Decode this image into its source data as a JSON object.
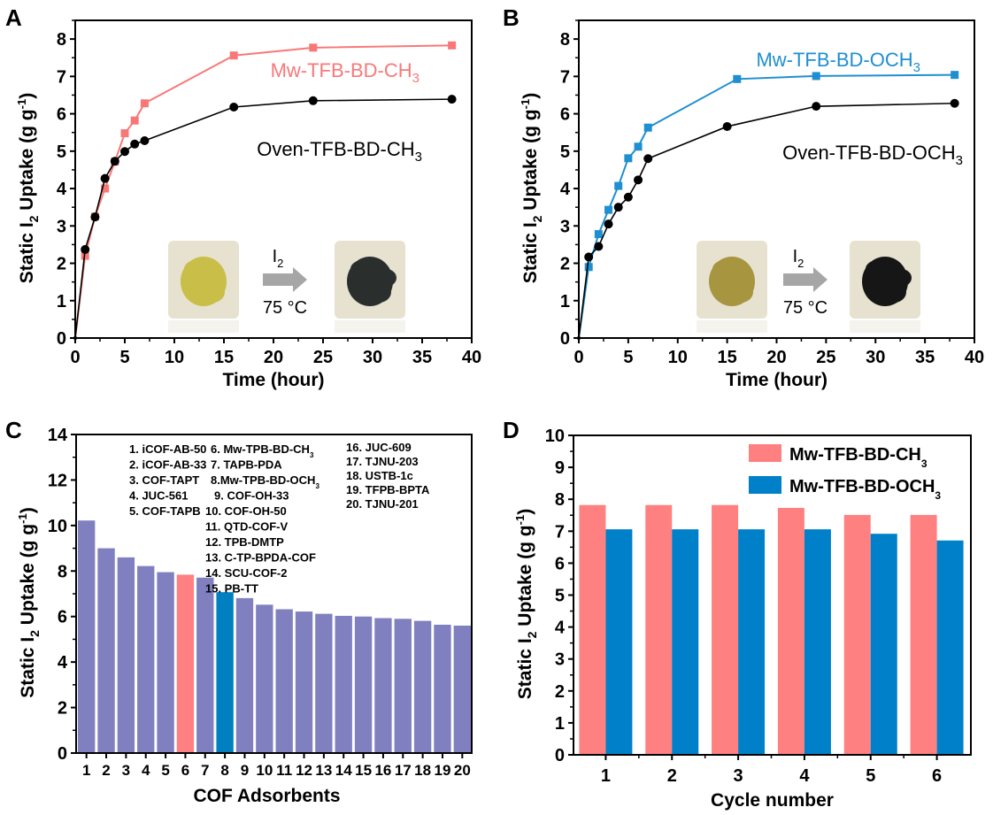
{
  "figure": {
    "panels": [
      "A",
      "B",
      "C",
      "D"
    ]
  },
  "chart_data": [
    {
      "panel": "A",
      "type": "line",
      "xlabel": "Time (hour)",
      "ylabel_main": "Static I",
      "ylabel_sub": "2",
      "ylabel_rest": " Uptake (g g",
      "ylabel_sup": "-1",
      "ylabel_end": ")",
      "xlim": [
        0,
        40
      ],
      "ylim": [
        0,
        8.5
      ],
      "xticks": [
        0,
        5,
        10,
        15,
        20,
        25,
        30,
        35,
        40
      ],
      "yticks": [
        0,
        1,
        2,
        3,
        4,
        5,
        6,
        7,
        8
      ],
      "series": [
        {
          "name": "Mw-TFB-BD-CH3",
          "label_main": "Mw-TFB-BD-CH",
          "label_sub": "3",
          "color": "#F87878",
          "marker": "square",
          "x": [
            0,
            1,
            2,
            3,
            4,
            5,
            6,
            7,
            16,
            24,
            38
          ],
          "y": [
            0,
            2.2,
            3.25,
            4.0,
            4.72,
            5.48,
            5.82,
            6.28,
            7.56,
            7.77,
            7.83
          ]
        },
        {
          "name": "Oven-TFB-BD-CH3",
          "label_main": "Oven-TFB-BD-CH",
          "label_sub": "3",
          "color": "#000000",
          "marker": "circle",
          "x": [
            0,
            1,
            2,
            3,
            4,
            5,
            6,
            7,
            16,
            24,
            38
          ],
          "y": [
            0,
            2.37,
            3.24,
            4.27,
            4.73,
            4.99,
            5.19,
            5.28,
            6.18,
            6.35,
            6.39
          ]
        }
      ],
      "inset": {
        "reagent_main": "I",
        "reagent_sub": "2",
        "condition": "75 °C",
        "before_color": "#C8BE48",
        "after_color": "#2A2F2E"
      }
    },
    {
      "panel": "B",
      "type": "line",
      "xlabel": "Time (hour)",
      "ylabel_main": "Static I",
      "ylabel_sub": "2",
      "ylabel_rest": " Uptake (g g",
      "ylabel_sup": "-1",
      "ylabel_end": ")",
      "xlim": [
        0,
        40
      ],
      "ylim": [
        0,
        8.5
      ],
      "xticks": [
        0,
        5,
        10,
        15,
        20,
        25,
        30,
        35,
        40
      ],
      "yticks": [
        0,
        1,
        2,
        3,
        4,
        5,
        6,
        7,
        8
      ],
      "series": [
        {
          "name": "Mw-TFB-BD-OCH3",
          "label_main": "Mw-TFB-BD-OCH",
          "label_sub": "3",
          "color": "#1E8FD0",
          "marker": "square",
          "x": [
            0,
            1,
            2,
            3,
            4,
            5,
            6,
            7,
            16,
            24,
            38
          ],
          "y": [
            0,
            1.9,
            2.78,
            3.43,
            4.07,
            4.81,
            5.12,
            5.63,
            6.93,
            7.01,
            7.04
          ]
        },
        {
          "name": "Oven-TFB-BD-OCH3",
          "label_main": "Oven-TFB-BD-OCH",
          "label_sub": "3",
          "color": "#000000",
          "marker": "circle",
          "x": [
            0,
            1,
            2,
            3,
            4,
            5,
            6,
            7,
            15,
            24,
            38
          ],
          "y": [
            0,
            2.17,
            2.45,
            3.05,
            3.5,
            3.77,
            4.23,
            4.8,
            5.66,
            6.2,
            6.28
          ]
        }
      ],
      "inset": {
        "reagent_main": "I",
        "reagent_sub": "2",
        "condition": "75 °C",
        "before_color": "#A79540",
        "after_color": "#161616"
      }
    },
    {
      "panel": "C",
      "type": "bar",
      "xlabel": "COF Adsorbents",
      "ylabel_main": "Static I",
      "ylabel_sub": "2",
      "ylabel_rest": " Uptake (g g",
      "ylabel_sup": "-1",
      "ylabel_end": ")",
      "ylim": [
        0,
        14
      ],
      "yticks": [
        0,
        2,
        4,
        6,
        8,
        10,
        12,
        14
      ],
      "categories": [
        "1",
        "2",
        "3",
        "4",
        "5",
        "6",
        "7",
        "8",
        "9",
        "10",
        "11",
        "12",
        "13",
        "14",
        "15",
        "16",
        "17",
        "18",
        "19",
        "20"
      ],
      "values": [
        10.22,
        9.0,
        8.6,
        8.22,
        7.95,
        7.84,
        7.71,
        7.07,
        6.81,
        6.52,
        6.32,
        6.22,
        6.12,
        6.03,
        6.0,
        5.93,
        5.9,
        5.81,
        5.64,
        5.6
      ],
      "bar_colors": [
        "#8080C0",
        "#8080C0",
        "#8080C0",
        "#8080C0",
        "#8080C0",
        "#FF8080",
        "#8080C0",
        "#0080C0",
        "#8080C0",
        "#8080C0",
        "#8080C0",
        "#8080C0",
        "#8080C0",
        "#8080C0",
        "#8080C0",
        "#8080C0",
        "#8080C0",
        "#8080C0",
        "#8080C0",
        "#8080C0"
      ],
      "legend_entries": [
        {
          "text": "1. iCOF-AB-50",
          "color": "#000000"
        },
        {
          "text": "2. iCOF-AB-33",
          "color": "#000000"
        },
        {
          "text": "3. COF-TAPT",
          "color": "#000000"
        },
        {
          "text": "4. JUC-561",
          "color": "#000000"
        },
        {
          "text": "5. COF-TAPB",
          "color": "#000000"
        },
        {
          "text": "6. Mw-TPB-BD-CH",
          "sub": "3",
          "color": "#E8204A"
        },
        {
          "text": "7. TAPB-PDA",
          "color": "#000000"
        },
        {
          "text": "8.Mw-TPB-BD-OCH",
          "sub": "3",
          "color": "#F01818"
        },
        {
          "text": "9. COF-OH-33",
          "color": "#000000"
        },
        {
          "text": "10. COF-OH-50",
          "color": "#000000"
        },
        {
          "text": "11. QTD-COF-V",
          "color": "#000000"
        },
        {
          "text": "12. TPB-DMTP",
          "color": "#000000"
        },
        {
          "text": "13. C-TP-BPDA-COF",
          "color": "#000000"
        },
        {
          "text": "14. SCU-COF-2",
          "color": "#000000"
        },
        {
          "text": "15. PB-TT",
          "color": "#000000"
        },
        {
          "text": "16. JUC-609",
          "color": "#000000"
        },
        {
          "text": "17. TJNU-203",
          "color": "#000000"
        },
        {
          "text": "18. USTB-1c",
          "color": "#000000"
        },
        {
          "text": "19. TFPB-BPTA",
          "color": "#000000"
        },
        {
          "text": "20. TJNU-201",
          "color": "#000000"
        }
      ]
    },
    {
      "panel": "D",
      "type": "bar",
      "xlabel": "Cycle number",
      "ylabel_main": "Static I",
      "ylabel_sub": "2",
      "ylabel_rest": " Uptake (g g",
      "ylabel_sup": "-1",
      "ylabel_end": ")",
      "ylim": [
        0,
        10
      ],
      "yticks": [
        0,
        1,
        2,
        3,
        4,
        5,
        6,
        7,
        8,
        9,
        10
      ],
      "categories": [
        "1",
        "2",
        "3",
        "4",
        "5",
        "6"
      ],
      "series": [
        {
          "name": "Mw-TFB-BD-CH3",
          "label_main": "Mw-TFB-BD-CH",
          "label_sub": "3",
          "color": "#FF8080",
          "values": [
            7.82,
            7.82,
            7.82,
            7.73,
            7.51,
            7.51
          ]
        },
        {
          "name": "Mw-TFB-BD-OCH3",
          "label_main": "Mw-TFB-BD-OCH",
          "label_sub": "3",
          "color": "#0080C8",
          "values": [
            7.06,
            7.06,
            7.06,
            7.06,
            6.92,
            6.71
          ]
        }
      ],
      "legend_position": "top-right"
    }
  ]
}
